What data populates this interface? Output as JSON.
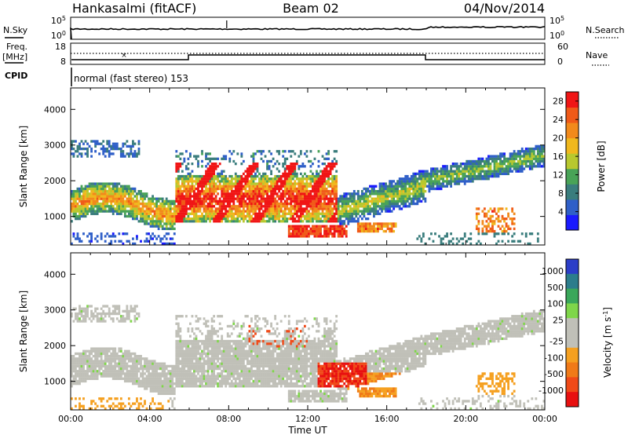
{
  "header": {
    "station": "Hankasalmi (fitACF)",
    "beam": "Beam 02",
    "date": "04/Nov/2014"
  },
  "status_panel": {
    "nsky_label": "N.Sky",
    "nsearch_label": "N.Search",
    "freq_label_1": "Freq.",
    "freq_label_2": "[MHz]",
    "nave_label": "Nave",
    "cpid_label": "CPID",
    "cpid_text": "normal (fast stereo) 153",
    "noise_ticks": [
      "10^5",
      "10^0"
    ],
    "noise_ticks_right": [
      "10^5",
      "10^0"
    ],
    "freq_ticks": [
      "18",
      "8"
    ],
    "nave_ticks": [
      "60",
      "0"
    ]
  },
  "x_axis": {
    "ticks": [
      "00:00",
      "04:00",
      "08:00",
      "12:00",
      "16:00",
      "20:00",
      "00:00"
    ],
    "label": "Time UT"
  },
  "colors": {
    "power": [
      "#1a1aff",
      "#2f5fc8",
      "#3a7d7d",
      "#49a357",
      "#b8c82e",
      "#f0b81d",
      "#f28a1b",
      "#f05a18",
      "#f01515"
    ],
    "velocity": [
      "#2c3ec8",
      "#2c7d8c",
      "#3aa75a",
      "#7fd64a",
      "#c0c0b8",
      "#c0c0b8",
      "#f5a020",
      "#f07a18",
      "#f04a18",
      "#e81010"
    ]
  },
  "chart_data": [
    {
      "type": "heatmap",
      "title": "",
      "xlabel": "Time UT",
      "ylabel": "Slant Range [km]",
      "x_ticks": [
        "00:00",
        "04:00",
        "08:00",
        "12:00",
        "16:00",
        "20:00",
        "00:00"
      ],
      "y_ticks": [
        1000,
        2000,
        3000,
        4000
      ],
      "ylim": [
        200,
        4600
      ],
      "colorbar": {
        "label": "Power [dB]",
        "ticks": [
          4,
          8,
          12,
          16,
          20,
          24,
          28
        ],
        "range": [
          0,
          30
        ]
      }
    },
    {
      "type": "heatmap",
      "title": "",
      "xlabel": "Time UT",
      "ylabel": "Slant Range [km]",
      "x_ticks": [
        "00:00",
        "04:00",
        "08:00",
        "12:00",
        "16:00",
        "20:00",
        "00:00"
      ],
      "y_ticks": [
        1000,
        2000,
        3000,
        4000
      ],
      "ylim": [
        200,
        4600
      ],
      "colorbar": {
        "label": "Velocity [m s^-1]",
        "ticks": [
          1000,
          500,
          100,
          25,
          -25,
          -100,
          -500,
          -1000
        ]
      }
    }
  ]
}
